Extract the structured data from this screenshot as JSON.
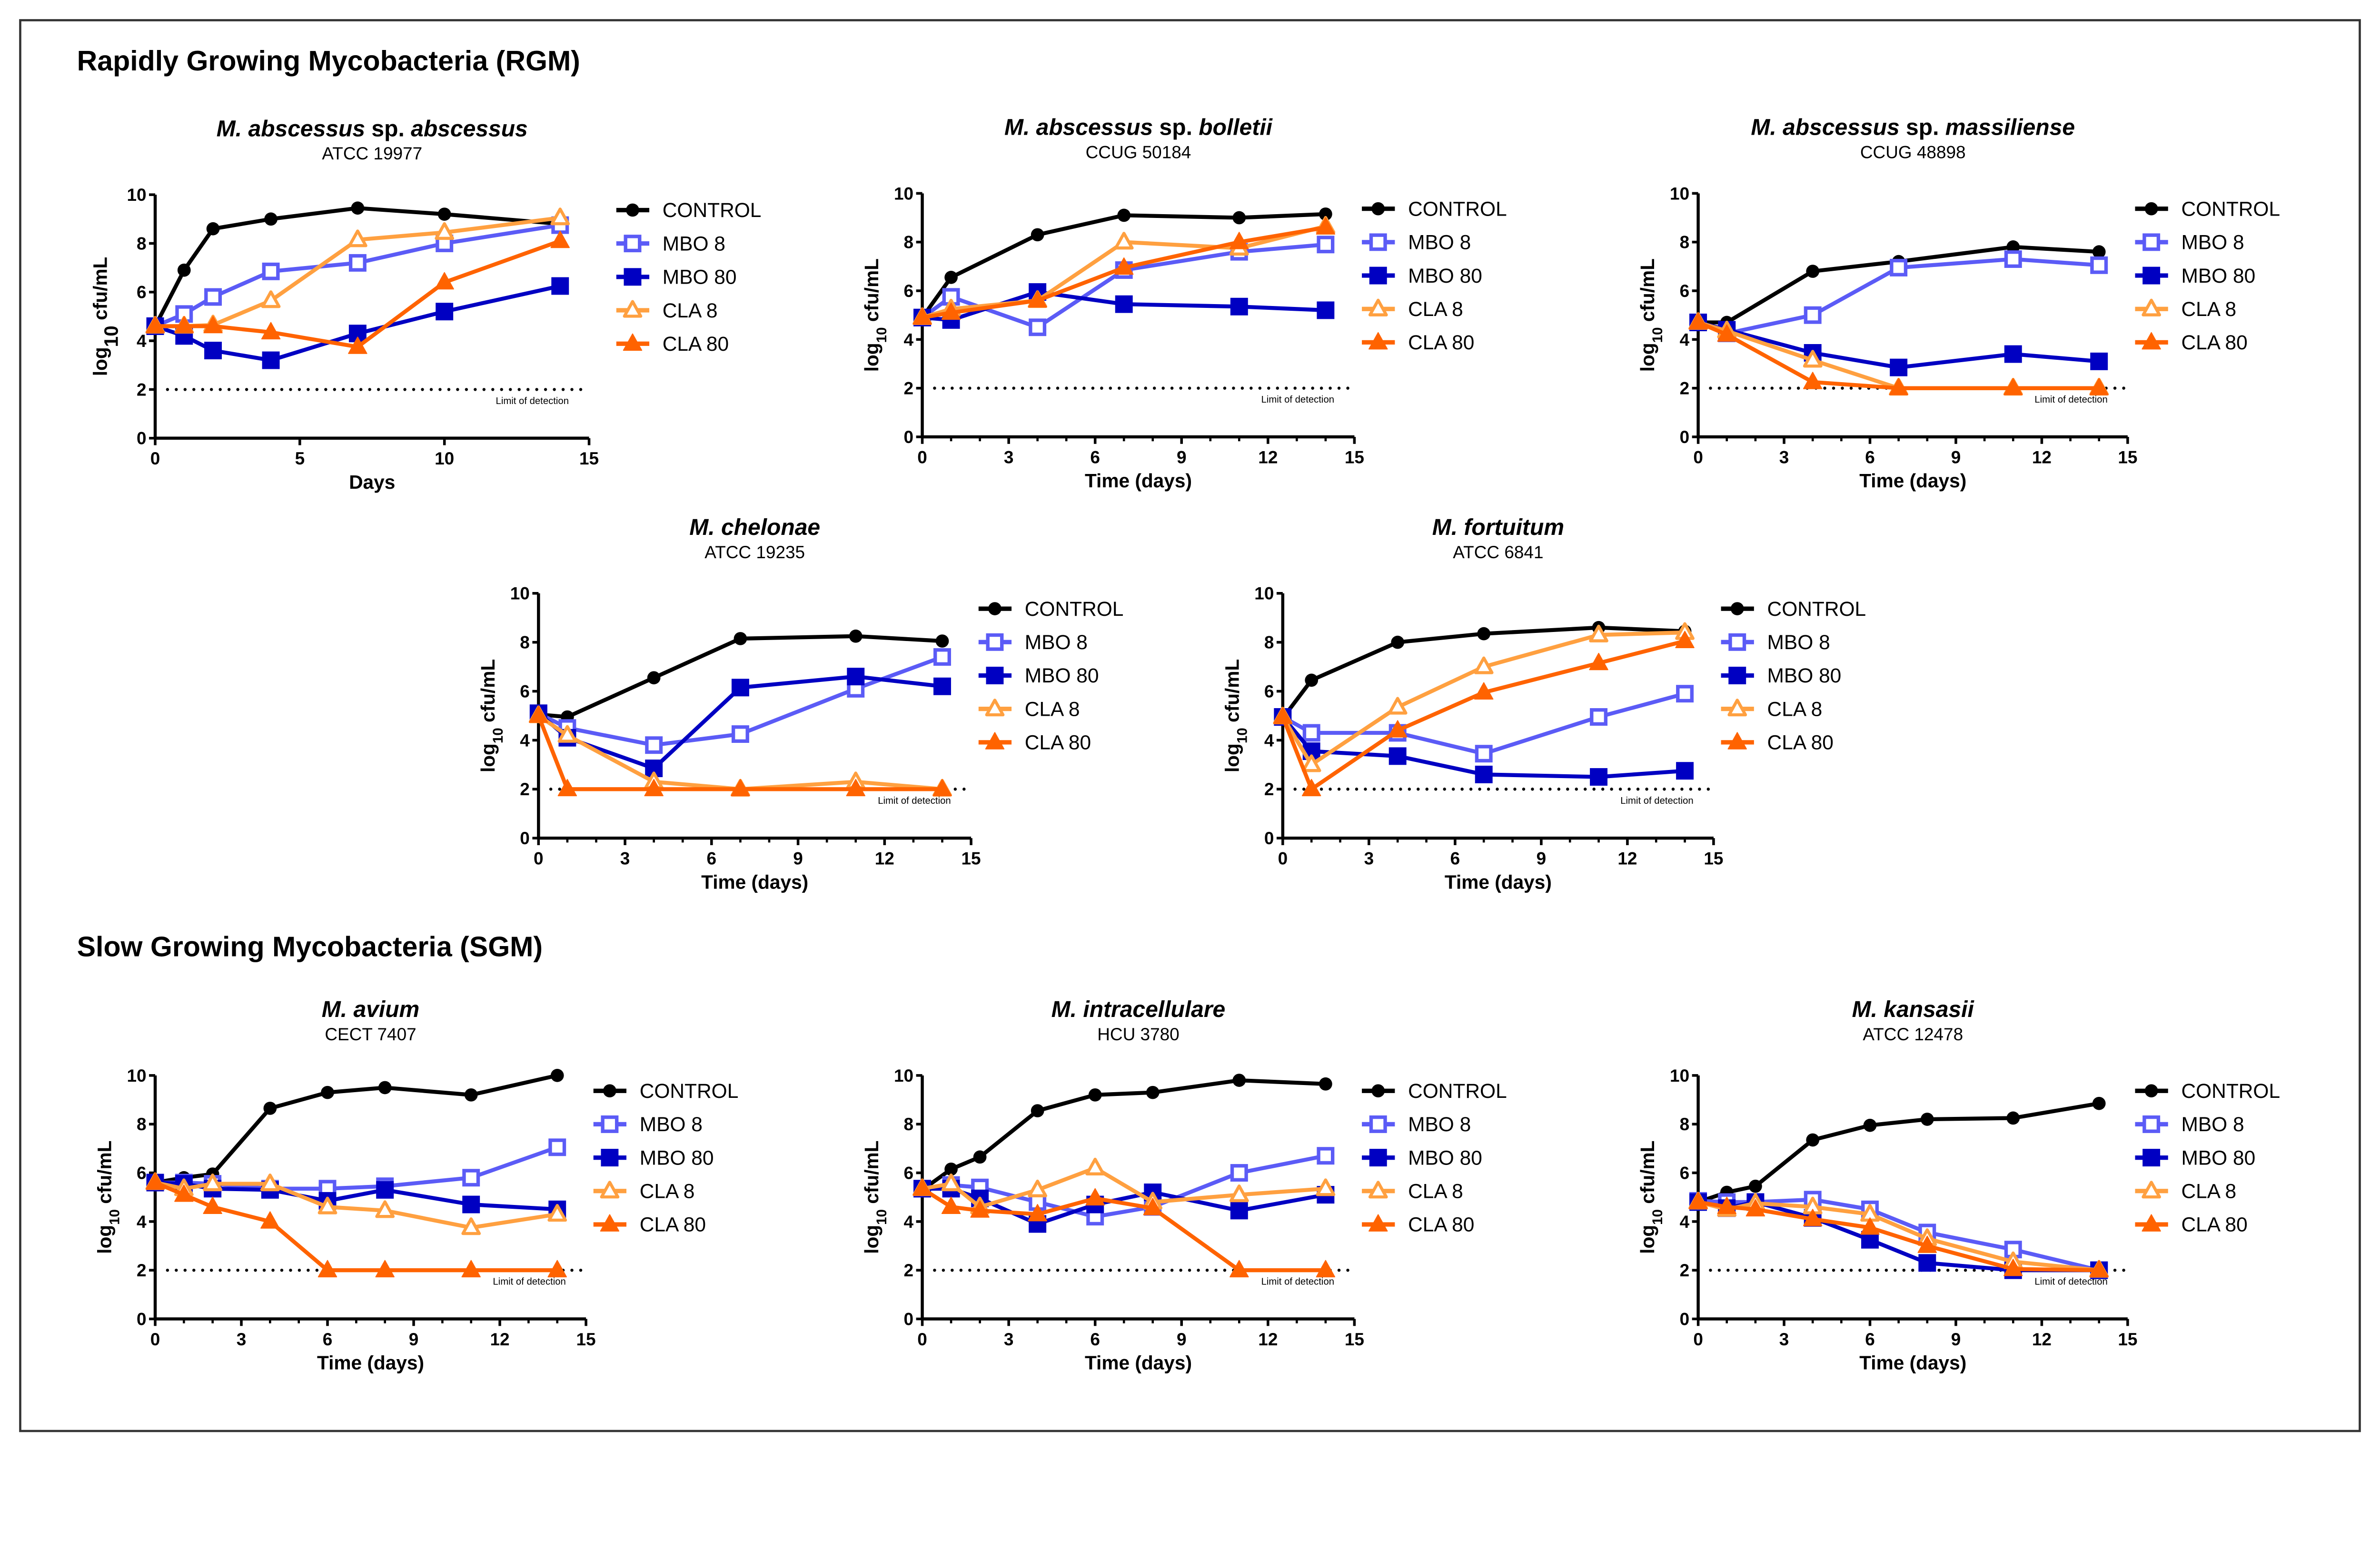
{
  "sections": {
    "rgm": "Rapidly Growing Mycobacteria (RGM)",
    "sgm": "Slow Growing Mycobacteria (SGM)"
  },
  "colors": {
    "CONTROL": "#000000",
    "MBO 8": "#5b5bf6",
    "MBO 80": "#0000c2",
    "CLA 8": "#ffa040",
    "CLA 80": "#ff6300"
  },
  "chart_data": [
    {
      "type": "line",
      "title": "M. abscessus sp. abscessus",
      "subtitle": "ATCC 19977",
      "xlabel": "Days",
      "ylabel": {
        "prefix": "log",
        "sub": "10",
        "suffix": " cfu/mL"
      },
      "xlim": [
        0,
        15
      ],
      "ylim": [
        0,
        10
      ],
      "xticks": [
        0,
        5,
        10,
        15
      ],
      "yticks": [
        0,
        2,
        4,
        6,
        8,
        10
      ],
      "limit_of_detection": {
        "value": 2,
        "label": "Limit of detection"
      },
      "legend": "right",
      "x": [
        0,
        1,
        2,
        4,
        7,
        10,
        14
      ],
      "series": [
        {
          "name": "CONTROL",
          "marker": "circle",
          "values": [
            4.6,
            6.9,
            8.6,
            9.0,
            9.45,
            9.2,
            8.8
          ]
        },
        {
          "name": "MBO 8",
          "marker": "open-square",
          "values": [
            4.6,
            5.1,
            5.8,
            6.85,
            7.2,
            8.0,
            8.75
          ]
        },
        {
          "name": "MBO 80",
          "marker": "square",
          "values": [
            4.6,
            4.2,
            3.6,
            3.2,
            4.3,
            5.2,
            6.25
          ]
        },
        {
          "name": "CLA 8",
          "marker": "open-triangle",
          "values": [
            4.6,
            4.6,
            4.65,
            5.65,
            8.15,
            8.45,
            9.05
          ]
        },
        {
          "name": "CLA 80",
          "marker": "triangle",
          "values": [
            4.6,
            4.6,
            4.6,
            4.35,
            3.75,
            6.4,
            8.1
          ]
        }
      ]
    },
    {
      "type": "line",
      "title": "M. abscessus sp. bolletii",
      "subtitle": "CCUG 50184",
      "xlabel": "Time (days)",
      "ylabel": {
        "prefix": "log",
        "sub": "10",
        "suffix": " cfu/mL"
      },
      "xlim": [
        0,
        15
      ],
      "ylim": [
        0,
        10
      ],
      "xticks": [
        0,
        3,
        6,
        9,
        12,
        15
      ],
      "yticks": [
        0,
        2,
        4,
        6,
        8,
        10
      ],
      "limit_of_detection": {
        "value": 2,
        "label": "Limit of detection"
      },
      "legend": "right",
      "x": [
        0,
        1,
        4,
        7,
        11,
        14
      ],
      "series": [
        {
          "name": "CONTROL",
          "marker": "circle",
          "values": [
            4.9,
            6.55,
            8.3,
            9.1,
            9.0,
            9.15
          ]
        },
        {
          "name": "MBO 8",
          "marker": "open-square",
          "values": [
            4.9,
            5.75,
            4.5,
            6.85,
            7.6,
            7.9
          ]
        },
        {
          "name": "MBO 80",
          "marker": "square",
          "values": [
            4.9,
            4.8,
            5.95,
            5.45,
            5.35,
            5.2
          ]
        },
        {
          "name": "CLA 8",
          "marker": "open-triangle",
          "values": [
            4.9,
            5.25,
            5.6,
            8.0,
            7.75,
            8.65
          ]
        },
        {
          "name": "CLA 80",
          "marker": "triangle",
          "values": [
            4.9,
            5.1,
            5.6,
            6.95,
            8.0,
            8.6
          ]
        }
      ]
    },
    {
      "type": "line",
      "title": "M. abscessus sp. massiliense",
      "subtitle": "CCUG 48898",
      "xlabel": "Time (days)",
      "ylabel": {
        "prefix": "log",
        "sub": "10",
        "suffix": " cfu/mL"
      },
      "xlim": [
        0,
        15
      ],
      "ylim": [
        0,
        10
      ],
      "xticks": [
        0,
        3,
        6,
        9,
        12,
        15
      ],
      "yticks": [
        0,
        2,
        4,
        6,
        8,
        10
      ],
      "limit_of_detection": {
        "value": 2,
        "label": "Limit of detection"
      },
      "legend": "right",
      "x": [
        0,
        1,
        4,
        7,
        11,
        14
      ],
      "series": [
        {
          "name": "CONTROL",
          "marker": "circle",
          "values": [
            4.7,
            4.7,
            6.8,
            7.2,
            7.8,
            7.6
          ]
        },
        {
          "name": "MBO 8",
          "marker": "open-square",
          "values": [
            4.7,
            4.25,
            5.0,
            6.95,
            7.3,
            7.05
          ]
        },
        {
          "name": "MBO 80",
          "marker": "square",
          "values": [
            4.7,
            4.4,
            3.45,
            2.85,
            3.4,
            3.1
          ]
        },
        {
          "name": "CLA 8",
          "marker": "open-triangle",
          "values": [
            4.7,
            4.35,
            3.15,
            2.0,
            2.0,
            2.0
          ]
        },
        {
          "name": "CLA 80",
          "marker": "triangle",
          "values": [
            4.7,
            4.2,
            2.25,
            2.0,
            2.0,
            2.0
          ]
        }
      ]
    },
    {
      "type": "line",
      "title": "M. chelonae",
      "subtitle": "ATCC 19235",
      "xlabel": "Time (days)",
      "ylabel": {
        "prefix": "log",
        "sub": "10",
        "suffix": " cfu/mL"
      },
      "xlim": [
        0,
        15
      ],
      "ylim": [
        0,
        10
      ],
      "xticks": [
        0,
        3,
        6,
        9,
        12,
        15
      ],
      "yticks": [
        0,
        2,
        4,
        6,
        8,
        10
      ],
      "limit_of_detection": {
        "value": 2,
        "label": "Limit of detection"
      },
      "legend": "right",
      "x": [
        0,
        1,
        4,
        7,
        11,
        14
      ],
      "series": [
        {
          "name": "CONTROL",
          "marker": "circle",
          "values": [
            5.05,
            4.95,
            6.55,
            8.15,
            8.25,
            8.05
          ]
        },
        {
          "name": "MBO 8",
          "marker": "open-square",
          "values": [
            5.1,
            4.5,
            3.8,
            4.25,
            6.1,
            7.4
          ]
        },
        {
          "name": "MBO 80",
          "marker": "square",
          "values": [
            5.1,
            4.1,
            2.85,
            6.15,
            6.6,
            6.2
          ]
        },
        {
          "name": "CLA 8",
          "marker": "open-triangle",
          "values": [
            5.0,
            4.2,
            2.3,
            2.0,
            2.3,
            2.0
          ]
        },
        {
          "name": "CLA 80",
          "marker": "triangle",
          "values": [
            5.0,
            2.0,
            2.0,
            2.0,
            2.0,
            2.0
          ]
        }
      ]
    },
    {
      "type": "line",
      "title": "M. fortuitum",
      "subtitle": "ATCC 6841",
      "xlabel": "Time (days)",
      "ylabel": {
        "prefix": "log",
        "sub": "10",
        "suffix": " cfu/mL"
      },
      "xlim": [
        0,
        15
      ],
      "ylim": [
        0,
        10
      ],
      "xticks": [
        0,
        3,
        6,
        9,
        12,
        15
      ],
      "yticks": [
        0,
        2,
        4,
        6,
        8,
        10
      ],
      "limit_of_detection": {
        "value": 2,
        "label": "Limit of detection"
      },
      "legend": "right",
      "x": [
        0,
        1,
        4,
        7,
        11,
        14
      ],
      "series": [
        {
          "name": "CONTROL",
          "marker": "circle",
          "values": [
            4.9,
            6.45,
            8.0,
            8.35,
            8.6,
            8.45
          ]
        },
        {
          "name": "MBO 8",
          "marker": "open-square",
          "values": [
            4.95,
            4.3,
            4.3,
            3.45,
            4.95,
            5.9
          ]
        },
        {
          "name": "MBO 80",
          "marker": "square",
          "values": [
            4.95,
            3.55,
            3.35,
            2.6,
            2.5,
            2.75
          ]
        },
        {
          "name": "CLA 8",
          "marker": "open-triangle",
          "values": [
            4.95,
            3.0,
            5.35,
            7.0,
            8.3,
            8.4
          ]
        },
        {
          "name": "CLA 80",
          "marker": "triangle",
          "values": [
            4.95,
            2.0,
            4.4,
            5.95,
            7.15,
            8.05
          ]
        }
      ]
    },
    {
      "type": "line",
      "title": "M. avium",
      "subtitle": "CECT 7407",
      "xlabel": "Time (days)",
      "ylabel": {
        "prefix": "log",
        "sub": "10",
        "suffix": " cfu/mL"
      },
      "xlim": [
        0,
        15
      ],
      "ylim": [
        0,
        10
      ],
      "xticks": [
        0,
        3,
        6,
        9,
        12,
        15
      ],
      "yticks": [
        0,
        2,
        4,
        6,
        8,
        10
      ],
      "limit_of_detection": {
        "value": 2,
        "label": "Limit of detection"
      },
      "legend": "right",
      "x": [
        0,
        1,
        2,
        4,
        6,
        8,
        11,
        14
      ],
      "series": [
        {
          "name": "CONTROL",
          "marker": "circle",
          "values": [
            5.6,
            5.8,
            5.95,
            8.65,
            9.3,
            9.5,
            9.2,
            10.0
          ]
        },
        {
          "name": "MBO 8",
          "marker": "open-square",
          "values": [
            5.6,
            5.6,
            5.55,
            5.35,
            5.35,
            5.45,
            5.8,
            7.05
          ]
        },
        {
          "name": "MBO 80",
          "marker": "square",
          "values": [
            5.6,
            5.55,
            5.35,
            5.3,
            4.85,
            5.3,
            4.7,
            4.5
          ]
        },
        {
          "name": "CLA 8",
          "marker": "open-triangle",
          "values": [
            5.6,
            5.35,
            5.55,
            5.55,
            4.6,
            4.45,
            3.75,
            4.3
          ]
        },
        {
          "name": "CLA 80",
          "marker": "triangle",
          "values": [
            5.6,
            5.1,
            4.6,
            4.0,
            2.0,
            2.0,
            2.0,
            2.0
          ]
        }
      ]
    },
    {
      "type": "line",
      "title": "M. intracellulare",
      "subtitle": "HCU 3780",
      "xlabel": "Time (days)",
      "ylabel": {
        "prefix": "log",
        "sub": "10",
        "suffix": " cfu/mL"
      },
      "xlim": [
        0,
        15
      ],
      "ylim": [
        0,
        10
      ],
      "xticks": [
        0,
        3,
        6,
        9,
        12,
        15
      ],
      "yticks": [
        0,
        2,
        4,
        6,
        8,
        10
      ],
      "limit_of_detection": {
        "value": 2,
        "label": "Limit of detection"
      },
      "legend": "right",
      "x": [
        0,
        1,
        2,
        4,
        6,
        8,
        11,
        14
      ],
      "series": [
        {
          "name": "CONTROL",
          "marker": "circle",
          "values": [
            5.3,
            6.15,
            6.65,
            8.55,
            9.2,
            9.3,
            9.8,
            9.65
          ]
        },
        {
          "name": "MBO 8",
          "marker": "open-square",
          "values": [
            5.35,
            5.5,
            5.4,
            4.8,
            4.2,
            4.6,
            6.0,
            6.7
          ]
        },
        {
          "name": "MBO 80",
          "marker": "square",
          "values": [
            5.35,
            5.35,
            4.95,
            3.9,
            4.7,
            5.2,
            4.45,
            5.1
          ]
        },
        {
          "name": "CLA 8",
          "marker": "open-triangle",
          "values": [
            5.35,
            5.55,
            4.6,
            5.3,
            6.2,
            4.8,
            5.1,
            5.35
          ]
        },
        {
          "name": "CLA 80",
          "marker": "triangle",
          "values": [
            5.35,
            4.6,
            4.45,
            4.3,
            4.95,
            4.55,
            2.0,
            2.0
          ]
        }
      ]
    },
    {
      "type": "line",
      "title": "M. kansasii",
      "subtitle": "ATCC 12478",
      "xlabel": "Time (days)",
      "ylabel": {
        "prefix": "log",
        "sub": "10",
        "suffix": " cfu/mL"
      },
      "xlim": [
        0,
        15
      ],
      "ylim": [
        0,
        10
      ],
      "xticks": [
        0,
        3,
        6,
        9,
        12,
        15
      ],
      "yticks": [
        0,
        2,
        4,
        6,
        8,
        10
      ],
      "limit_of_detection": {
        "value": 2,
        "label": "Limit of detection"
      },
      "legend": "right",
      "x": [
        0,
        1,
        2,
        4,
        6,
        8,
        11,
        14
      ],
      "series": [
        {
          "name": "CONTROL",
          "marker": "circle",
          "values": [
            4.8,
            5.2,
            5.45,
            7.35,
            7.95,
            8.2,
            8.25,
            8.85
          ]
        },
        {
          "name": "MBO 8",
          "marker": "open-square",
          "values": [
            4.85,
            4.8,
            4.8,
            4.9,
            4.5,
            3.55,
            2.85,
            2.0
          ]
        },
        {
          "name": "MBO 80",
          "marker": "square",
          "values": [
            4.8,
            4.55,
            4.8,
            4.15,
            3.25,
            2.3,
            2.0,
            2.0
          ]
        },
        {
          "name": "CLA 8",
          "marker": "open-triangle",
          "values": [
            4.8,
            4.5,
            4.75,
            4.6,
            4.3,
            3.3,
            2.35,
            2.0
          ]
        },
        {
          "name": "CLA 80",
          "marker": "triangle",
          "values": [
            4.8,
            4.6,
            4.5,
            4.1,
            3.75,
            3.0,
            2.05,
            2.0
          ]
        }
      ]
    }
  ]
}
